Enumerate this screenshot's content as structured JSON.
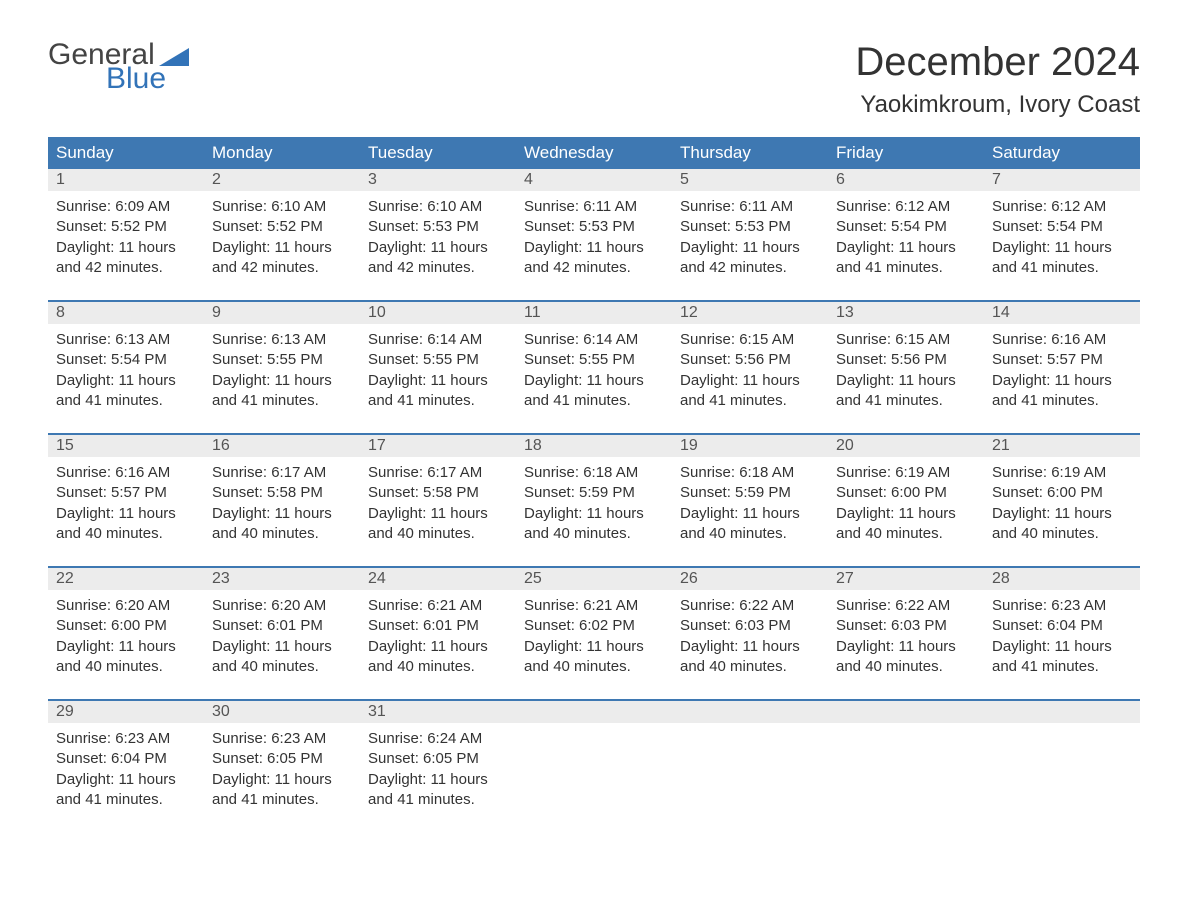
{
  "logo": {
    "word1": "General",
    "word2": "Blue",
    "icon_color": "#3273b8"
  },
  "title": "December 2024",
  "location": "Yaokimkroum, Ivory Coast",
  "colors": {
    "header_bg": "#3e78b2",
    "header_text": "#ffffff",
    "daynum_bg": "#ececec",
    "border": "#3e78b2",
    "text": "#333333"
  },
  "weekdays": [
    "Sunday",
    "Monday",
    "Tuesday",
    "Wednesday",
    "Thursday",
    "Friday",
    "Saturday"
  ],
  "weeks": [
    [
      {
        "n": "1",
        "sunrise": "6:09 AM",
        "sunset": "5:52 PM",
        "daylight": "11 hours and 42 minutes."
      },
      {
        "n": "2",
        "sunrise": "6:10 AM",
        "sunset": "5:52 PM",
        "daylight": "11 hours and 42 minutes."
      },
      {
        "n": "3",
        "sunrise": "6:10 AM",
        "sunset": "5:53 PM",
        "daylight": "11 hours and 42 minutes."
      },
      {
        "n": "4",
        "sunrise": "6:11 AM",
        "sunset": "5:53 PM",
        "daylight": "11 hours and 42 minutes."
      },
      {
        "n": "5",
        "sunrise": "6:11 AM",
        "sunset": "5:53 PM",
        "daylight": "11 hours and 42 minutes."
      },
      {
        "n": "6",
        "sunrise": "6:12 AM",
        "sunset": "5:54 PM",
        "daylight": "11 hours and 41 minutes."
      },
      {
        "n": "7",
        "sunrise": "6:12 AM",
        "sunset": "5:54 PM",
        "daylight": "11 hours and 41 minutes."
      }
    ],
    [
      {
        "n": "8",
        "sunrise": "6:13 AM",
        "sunset": "5:54 PM",
        "daylight": "11 hours and 41 minutes."
      },
      {
        "n": "9",
        "sunrise": "6:13 AM",
        "sunset": "5:55 PM",
        "daylight": "11 hours and 41 minutes."
      },
      {
        "n": "10",
        "sunrise": "6:14 AM",
        "sunset": "5:55 PM",
        "daylight": "11 hours and 41 minutes."
      },
      {
        "n": "11",
        "sunrise": "6:14 AM",
        "sunset": "5:55 PM",
        "daylight": "11 hours and 41 minutes."
      },
      {
        "n": "12",
        "sunrise": "6:15 AM",
        "sunset": "5:56 PM",
        "daylight": "11 hours and 41 minutes."
      },
      {
        "n": "13",
        "sunrise": "6:15 AM",
        "sunset": "5:56 PM",
        "daylight": "11 hours and 41 minutes."
      },
      {
        "n": "14",
        "sunrise": "6:16 AM",
        "sunset": "5:57 PM",
        "daylight": "11 hours and 41 minutes."
      }
    ],
    [
      {
        "n": "15",
        "sunrise": "6:16 AM",
        "sunset": "5:57 PM",
        "daylight": "11 hours and 40 minutes."
      },
      {
        "n": "16",
        "sunrise": "6:17 AM",
        "sunset": "5:58 PM",
        "daylight": "11 hours and 40 minutes."
      },
      {
        "n": "17",
        "sunrise": "6:17 AM",
        "sunset": "5:58 PM",
        "daylight": "11 hours and 40 minutes."
      },
      {
        "n": "18",
        "sunrise": "6:18 AM",
        "sunset": "5:59 PM",
        "daylight": "11 hours and 40 minutes."
      },
      {
        "n": "19",
        "sunrise": "6:18 AM",
        "sunset": "5:59 PM",
        "daylight": "11 hours and 40 minutes."
      },
      {
        "n": "20",
        "sunrise": "6:19 AM",
        "sunset": "6:00 PM",
        "daylight": "11 hours and 40 minutes."
      },
      {
        "n": "21",
        "sunrise": "6:19 AM",
        "sunset": "6:00 PM",
        "daylight": "11 hours and 40 minutes."
      }
    ],
    [
      {
        "n": "22",
        "sunrise": "6:20 AM",
        "sunset": "6:00 PM",
        "daylight": "11 hours and 40 minutes."
      },
      {
        "n": "23",
        "sunrise": "6:20 AM",
        "sunset": "6:01 PM",
        "daylight": "11 hours and 40 minutes."
      },
      {
        "n": "24",
        "sunrise": "6:21 AM",
        "sunset": "6:01 PM",
        "daylight": "11 hours and 40 minutes."
      },
      {
        "n": "25",
        "sunrise": "6:21 AM",
        "sunset": "6:02 PM",
        "daylight": "11 hours and 40 minutes."
      },
      {
        "n": "26",
        "sunrise": "6:22 AM",
        "sunset": "6:03 PM",
        "daylight": "11 hours and 40 minutes."
      },
      {
        "n": "27",
        "sunrise": "6:22 AM",
        "sunset": "6:03 PM",
        "daylight": "11 hours and 40 minutes."
      },
      {
        "n": "28",
        "sunrise": "6:23 AM",
        "sunset": "6:04 PM",
        "daylight": "11 hours and 41 minutes."
      }
    ],
    [
      {
        "n": "29",
        "sunrise": "6:23 AM",
        "sunset": "6:04 PM",
        "daylight": "11 hours and 41 minutes."
      },
      {
        "n": "30",
        "sunrise": "6:23 AM",
        "sunset": "6:05 PM",
        "daylight": "11 hours and 41 minutes."
      },
      {
        "n": "31",
        "sunrise": "6:24 AM",
        "sunset": "6:05 PM",
        "daylight": "11 hours and 41 minutes."
      },
      null,
      null,
      null,
      null
    ]
  ],
  "labels": {
    "sunrise": "Sunrise:",
    "sunset": "Sunset:",
    "daylight": "Daylight:"
  }
}
